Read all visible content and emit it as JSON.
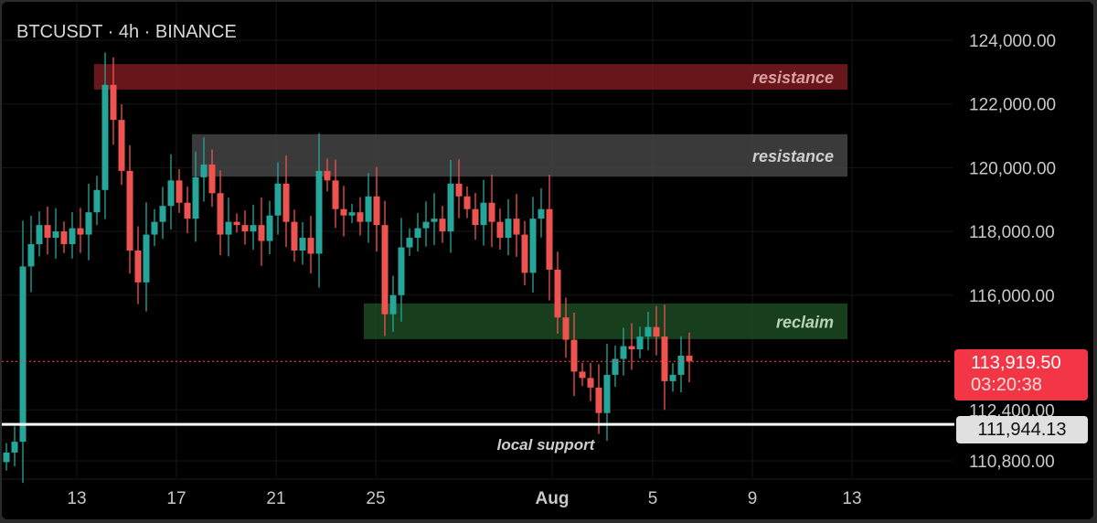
{
  "header": {
    "title": "BTCUSDT · 4h · BINANCE"
  },
  "colors": {
    "up": "#26a69a",
    "down": "#ef5350",
    "background": "#000000",
    "last_price": "#f23645",
    "support": "#ffffff"
  },
  "chart_data": {
    "type": "candlestick",
    "title": "BTCUSDT · 4h · BINANCE",
    "ylim": [
      110800,
      124200
    ],
    "y_ticks": [
      "124,000.00",
      "122,000.00",
      "120,000.00",
      "118,000.00",
      "116,000.00",
      "112,400.00",
      "110,800.00"
    ],
    "y_tick_values": [
      124000,
      122000,
      120000,
      118000,
      116000,
      112400,
      110800
    ],
    "x_ticks": [
      "13",
      "17",
      "21",
      "25",
      "Aug",
      "5",
      "9",
      "13"
    ],
    "closes": [
      111060,
      111400,
      116900,
      117600,
      118200,
      117800,
      118000,
      117600,
      118100,
      117900,
      118600,
      119300,
      122600,
      121500,
      119900,
      117400,
      116400,
      117900,
      118300,
      118800,
      119600,
      118900,
      118400,
      119700,
      120100,
      119200,
      117900,
      118300,
      118200,
      118000,
      118200,
      117700,
      118500,
      119500,
      118300,
      117400,
      117800,
      117300,
      119900,
      119600,
      118700,
      118500,
      118600,
      118300,
      119100,
      118200,
      115400,
      116000,
      117500,
      117800,
      118100,
      118300,
      118400,
      118000,
      119500,
      119100,
      118700,
      118200,
      118900,
      118300,
      117800,
      118400,
      117900,
      116700,
      118400,
      118700,
      116800,
      115300,
      114600,
      113600,
      113400,
      113100,
      112300,
      113500,
      114000,
      114400,
      114300,
      114700,
      115000,
      114700,
      113300,
      113500,
      114100,
      113919.5
    ],
    "zones": [
      {
        "label": "resistance",
        "top": 123250,
        "bottom": 122450,
        "color": "#7a1a1e",
        "text_color": "#d9a0a3"
      },
      {
        "label": "resistance",
        "top": 121050,
        "bottom": 119720,
        "color": "#444444",
        "text_color": "#cfcfcf"
      },
      {
        "label": "reclaim",
        "top": 115740,
        "bottom": 114620,
        "color": "#1c4a22",
        "text_color": "#b9d3bb"
      }
    ],
    "support": {
      "label": "local support",
      "value": 111944.13,
      "value_label": "111,944.13"
    },
    "last_price": {
      "value": 113919.5,
      "value_label": "113,919.50",
      "countdown": "03:20:38"
    },
    "grid": true
  }
}
